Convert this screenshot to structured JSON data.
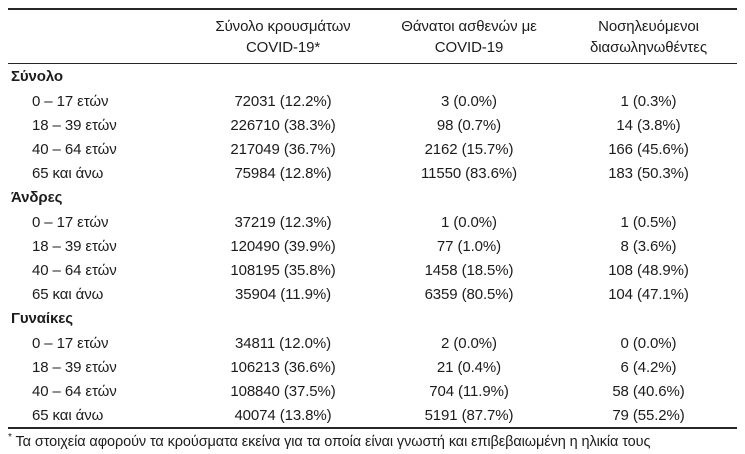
{
  "header": {
    "col_cases": {
      "line1": "Σύνολο κρουσμάτων",
      "line2": "COVID-19*"
    },
    "col_deaths": {
      "line1": "Θάνατοι ασθενών με",
      "line2": "COVID-19"
    },
    "col_intubated": {
      "line1": "Νοσηλευόμενοι",
      "line2": "διασωληνωθέντες"
    }
  },
  "groups": [
    {
      "label": "Σύνολο",
      "rows": [
        {
          "age": "0 – 17 ετών",
          "cases": "72031 (12.2%)",
          "deaths": "3 (0.0%)",
          "intubated": "1 (0.3%)"
        },
        {
          "age": "18 – 39 ετών",
          "cases": "226710 (38.3%)",
          "deaths": "98 (0.7%)",
          "intubated": "14 (3.8%)"
        },
        {
          "age": "40 – 64 ετών",
          "cases": "217049 (36.7%)",
          "deaths": "2162 (15.7%)",
          "intubated": "166 (45.6%)"
        },
        {
          "age": "65 και άνω",
          "cases": "75984 (12.8%)",
          "deaths": "11550 (83.6%)",
          "intubated": "183 (50.3%)"
        }
      ]
    },
    {
      "label": "Άνδρες",
      "rows": [
        {
          "age": "0 – 17 ετών",
          "cases": "37219 (12.3%)",
          "deaths": "1 (0.0%)",
          "intubated": "1 (0.5%)"
        },
        {
          "age": "18 – 39 ετών",
          "cases": "120490 (39.9%)",
          "deaths": "77 (1.0%)",
          "intubated": "8 (3.6%)"
        },
        {
          "age": "40 – 64 ετών",
          "cases": "108195 (35.8%)",
          "deaths": "1458 (18.5%)",
          "intubated": "108 (48.9%)"
        },
        {
          "age": "65 και άνω",
          "cases": "35904 (11.9%)",
          "deaths": "6359 (80.5%)",
          "intubated": "104 (47.1%)"
        }
      ]
    },
    {
      "label": "Γυναίκες",
      "rows": [
        {
          "age": "0 – 17 ετών",
          "cases": "34811 (12.0%)",
          "deaths": "2 (0.0%)",
          "intubated": "0 (0.0%)"
        },
        {
          "age": "18 – 39 ετών",
          "cases": "106213 (36.6%)",
          "deaths": "21 (0.4%)",
          "intubated": "6 (4.2%)"
        },
        {
          "age": "40 – 64 ετών",
          "cases": "108840 (37.5%)",
          "deaths": "704 (11.9%)",
          "intubated": "58 (40.6%)"
        },
        {
          "age": "65 και άνω",
          "cases": "40074 (13.8%)",
          "deaths": "5191 (87.7%)",
          "intubated": "79 (55.2%)"
        }
      ]
    }
  ],
  "footnote": {
    "marker": "*",
    "text": "Τα στοιχεία αφορούν τα κρούσματα εκείνα για τα οποία είναι γνωστή και επιβεβαιωμένη η ηλικία τους"
  },
  "colors": {
    "text": "#1c1c1c",
    "rule": "#262626",
    "background": "#ffffff"
  }
}
